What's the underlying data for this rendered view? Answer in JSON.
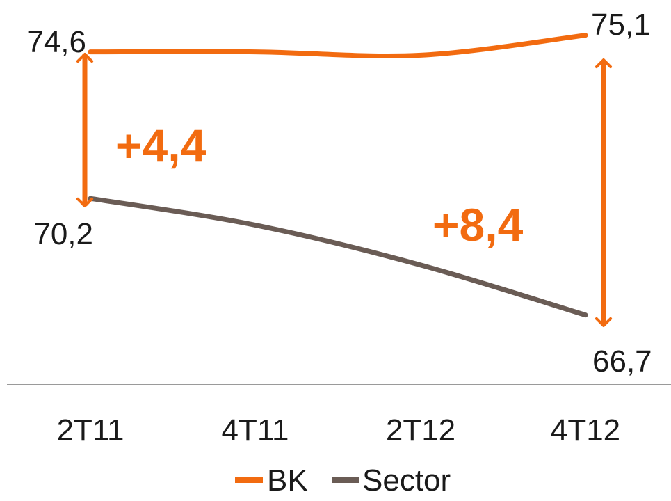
{
  "chart_data": {
    "type": "line",
    "categories": [
      "2T11",
      "4T11",
      "2T12",
      "4T12"
    ],
    "series": [
      {
        "name": "BK",
        "values": [
          74.6,
          74.6,
          74.5,
          75.1
        ],
        "color": "#f26b10",
        "first_label": "74,6",
        "last_label": "75,1"
      },
      {
        "name": "Sector",
        "values": [
          70.2,
          69.4,
          68.2,
          66.7
        ],
        "color": "#6a5c55",
        "first_label": "70,2",
        "last_label": "66,7"
      }
    ],
    "annotations": [
      {
        "text": "+4,4",
        "color": "#f26b10"
      },
      {
        "text": "+8,4",
        "color": "#f26b10"
      }
    ],
    "ylim": [
      65.0,
      75.7
    ],
    "grid": false,
    "legend": "bottom",
    "title": "",
    "xlabel": "",
    "ylabel": ""
  }
}
